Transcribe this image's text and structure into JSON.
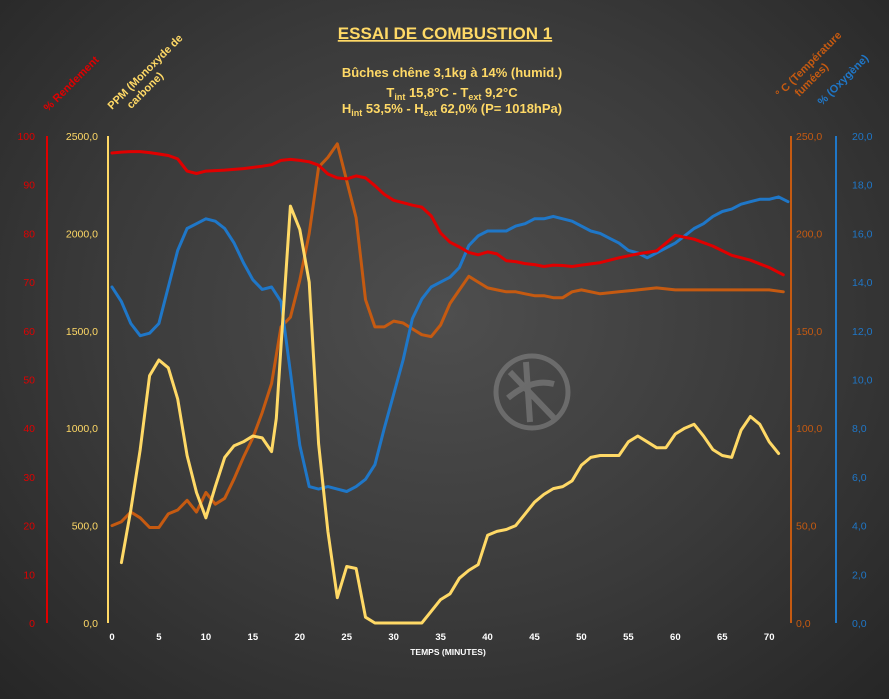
{
  "colors": {
    "rendement": "#e00000",
    "co": "#ffd966",
    "temp": "#c55a11",
    "o2": "#1f77c8",
    "title": "#ffd966"
  },
  "header": {
    "title": "ESSAI DE COMBUSTION 1",
    "subtitle1": "Bûches chêne 3,1kg à 14% (humid.)",
    "line2_a": "T",
    "line2_a_sub": "int",
    "line2_b": " 15,8°C  -  T",
    "line2_b_sub": "ext",
    "line2_c": " 9,2°C",
    "line3_a": "H",
    "line3_a_sub": "int",
    "line3_b": " 53,5%  -  H",
    "line3_b_sub": "ext",
    "line3_c": " 62,0%   (P= 1018hPa)"
  },
  "chart_data": {
    "type": "line",
    "title": "ESSAI DE COMBUSTION 1",
    "xlabel": "TEMPS (MINUTES)",
    "xlim": [
      0,
      72
    ],
    "xticks": [
      "0",
      "5",
      "10",
      "15",
      "20",
      "25",
      "30",
      "35",
      "40",
      "45",
      "50",
      "55",
      "60",
      "65",
      "70"
    ],
    "grid": false,
    "axes": {
      "rendement": {
        "label": "% Rendement",
        "ylim": [
          0,
          100
        ],
        "ticks": [
          "0",
          "10",
          "20",
          "30",
          "40",
          "50",
          "60",
          "70",
          "80",
          "90",
          "100"
        ]
      },
      "co": {
        "label_line1": "PPM (Monoxyde de",
        "label_line2": "carbone)",
        "ylim": [
          0,
          2500
        ],
        "ticks": [
          "0,0",
          "500,0",
          "1000,0",
          "1500,0",
          "2000,0",
          "2500,0"
        ]
      },
      "temp": {
        "label_line1": "° C (Température",
        "label_line2": "fumées)",
        "ylim": [
          0,
          250
        ],
        "ticks": [
          "0,0",
          "50,0",
          "100,0",
          "150,0",
          "200,0",
          "250,0"
        ]
      },
      "o2": {
        "label": "% (Oxygène)",
        "ylim": [
          0,
          20
        ],
        "ticks": [
          "0,0",
          "2,0",
          "4,0",
          "6,0",
          "8,0",
          "10,0",
          "12,0",
          "14,0",
          "16,0",
          "18,0",
          "20,0"
        ]
      }
    },
    "series": [
      {
        "name": "% Rendement",
        "axis": "rendement",
        "x": [
          0,
          1,
          2,
          3,
          4,
          5,
          6,
          7,
          8,
          9,
          10,
          12,
          14,
          16,
          17,
          18,
          19,
          20,
          21,
          22,
          23,
          24,
          25,
          26,
          27,
          28,
          29,
          30,
          31,
          32,
          33,
          34,
          35,
          36,
          37,
          38,
          39,
          40,
          41,
          42,
          43,
          44,
          45,
          46,
          47,
          48,
          49,
          50,
          52,
          54,
          56,
          58,
          60,
          62,
          64,
          66,
          68,
          70,
          71.5
        ],
        "values": [
          96.5,
          96.7,
          96.8,
          96.8,
          96.6,
          96.3,
          96.0,
          95.3,
          92.8,
          92.3,
          92.8,
          93.0,
          93.3,
          93.8,
          94.1,
          95.0,
          95.2,
          95.0,
          94.7,
          94.0,
          92.2,
          91.4,
          91.2,
          91.8,
          91.4,
          89.8,
          88.0,
          86.8,
          86.3,
          85.8,
          85.4,
          83.6,
          80.1,
          78.2,
          77.2,
          76.1,
          75.6,
          76.2,
          75.8,
          74.4,
          74.2,
          73.8,
          73.6,
          73.2,
          73.5,
          73.4,
          73.2,
          73.5,
          74.0,
          75.0,
          75.8,
          76.4,
          79.6,
          78.8,
          77.4,
          75.5,
          74.5,
          73.0,
          71.5
        ]
      },
      {
        "name": "PPM (Monoxyde de carbone)",
        "axis": "co",
        "x": [
          1,
          2,
          3,
          4,
          5,
          6,
          7,
          8,
          9,
          10,
          11,
          12,
          13,
          14,
          15,
          16,
          17,
          17.5,
          18,
          19,
          20,
          21,
          22,
          23,
          24,
          25,
          26,
          27,
          28,
          29,
          30,
          31,
          32,
          33,
          34,
          35,
          36,
          37,
          38,
          39,
          40,
          41,
          42,
          43,
          44,
          45,
          46,
          47,
          48,
          49,
          50,
          51,
          52,
          53,
          54,
          55,
          56,
          57,
          58,
          59,
          60,
          61,
          62,
          63,
          64,
          65,
          66,
          67,
          68,
          69,
          70,
          71
        ],
        "values": [
          310,
          580,
          890,
          1270,
          1350,
          1310,
          1150,
          860,
          670,
          540,
          700,
          850,
          910,
          930,
          960,
          950,
          880,
          1050,
          1420,
          2140,
          2020,
          1750,
          920,
          470,
          130,
          290,
          280,
          30,
          0,
          0,
          0,
          0,
          0,
          0,
          60,
          120,
          150,
          230,
          270,
          300,
          450,
          470,
          480,
          500,
          560,
          620,
          660,
          690,
          700,
          730,
          810,
          850,
          860,
          860,
          860,
          930,
          960,
          930,
          900,
          900,
          970,
          1000,
          1020,
          960,
          890,
          860,
          850,
          990,
          1060,
          1020,
          930,
          870
        ]
      },
      {
        "name": "° C (Température fumées)",
        "axis": "temp",
        "x": [
          0,
          1,
          2,
          3,
          4,
          5,
          6,
          7,
          8,
          9,
          10,
          11,
          12,
          13,
          14,
          15,
          16,
          17,
          18,
          19,
          20,
          21,
          22,
          23,
          24,
          25,
          26,
          27,
          28,
          29,
          30,
          31,
          32,
          33,
          34,
          35,
          36,
          37,
          38,
          39,
          40,
          41,
          42,
          43,
          44,
          45,
          46,
          47,
          48,
          49,
          50,
          52,
          54,
          56,
          58,
          60,
          62,
          64,
          66,
          68,
          70,
          71.5
        ],
        "values": [
          50,
          52,
          57,
          54,
          49,
          49,
          56,
          58,
          63,
          57,
          67,
          61,
          64,
          74,
          85,
          95,
          108,
          123,
          152,
          157,
          176,
          200,
          234,
          239,
          246,
          227,
          208,
          166,
          152,
          152,
          155,
          154,
          151,
          148,
          147,
          153,
          164,
          171,
          178,
          175,
          172,
          171,
          170,
          170,
          169,
          168,
          168,
          167,
          167,
          170,
          171,
          169,
          170,
          171,
          172,
          171,
          171,
          171,
          171,
          171,
          171,
          170
        ]
      },
      {
        "name": "% (Oxygène)",
        "axis": "o2",
        "x": [
          0,
          1,
          2,
          3,
          4,
          5,
          6,
          7,
          8,
          9,
          10,
          11,
          12,
          13,
          14,
          15,
          16,
          17,
          18,
          19,
          20,
          21,
          22,
          23,
          24,
          25,
          26,
          27,
          28,
          29,
          30,
          31,
          32,
          33,
          34,
          35,
          36,
          37,
          38,
          39,
          40,
          41,
          42,
          43,
          44,
          45,
          46,
          47,
          48,
          49,
          50,
          51,
          52,
          53,
          54,
          55,
          56,
          57,
          58,
          59,
          60,
          61,
          62,
          63,
          64,
          65,
          66,
          67,
          68,
          69,
          70,
          71,
          72
        ],
        "values": [
          13.8,
          13.2,
          12.3,
          11.8,
          11.9,
          12.3,
          13.8,
          15.3,
          16.2,
          16.4,
          16.6,
          16.5,
          16.2,
          15.6,
          14.8,
          14.1,
          13.7,
          13.8,
          13.2,
          10.3,
          7.3,
          5.6,
          5.5,
          5.6,
          5.5,
          5.4,
          5.6,
          5.9,
          6.5,
          8.0,
          9.4,
          10.8,
          12.5,
          13.3,
          13.8,
          14.0,
          14.2,
          14.6,
          15.5,
          15.9,
          16.1,
          16.1,
          16.1,
          16.3,
          16.4,
          16.6,
          16.6,
          16.7,
          16.6,
          16.5,
          16.3,
          16.1,
          16.0,
          15.8,
          15.6,
          15.3,
          15.2,
          15.0,
          15.2,
          15.4,
          15.6,
          15.9,
          16.2,
          16.4,
          16.7,
          16.9,
          17.0,
          17.2,
          17.3,
          17.4,
          17.4,
          17.5,
          17.3
        ]
      }
    ]
  }
}
